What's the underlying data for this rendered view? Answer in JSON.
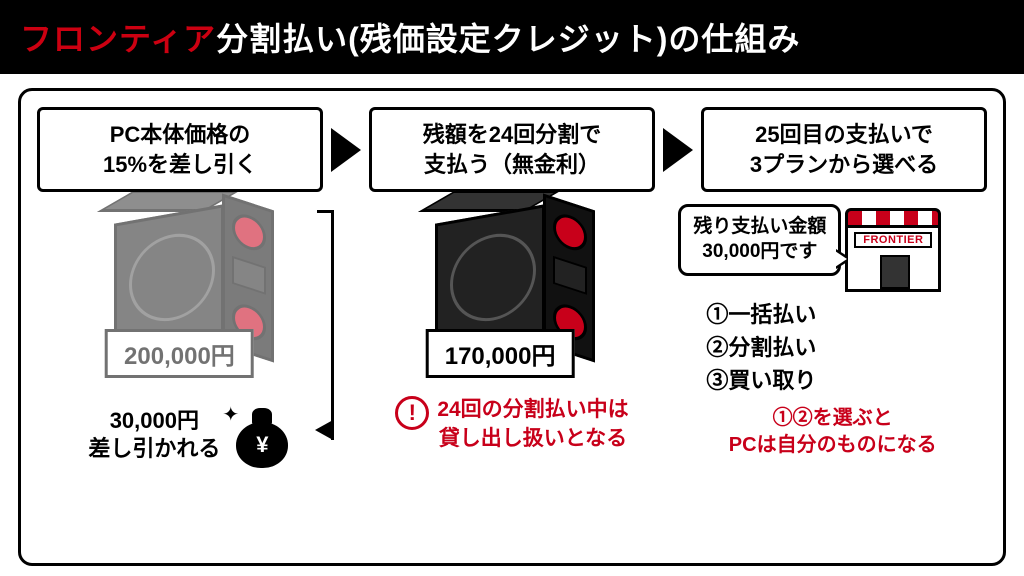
{
  "colors": {
    "accent": "#cc0011",
    "header_bg": "#000000",
    "text": "#000000",
    "warn": "#c8001a",
    "bg": "#ffffff"
  },
  "header": {
    "accent": "フロンティア",
    "rest": "分割払い(残価設定クレジット)の仕組み"
  },
  "steps": {
    "s1_l1": "PC本体価格の",
    "s1_l2": "15%を差し引く",
    "s2_l1": "残額を24回分割で",
    "s2_l2": "支払う（無金利）",
    "s3_l1": "25回目の支払いで",
    "s3_l2": "3プランから選べる"
  },
  "col1": {
    "price": "200,000円",
    "deduct_l1": "30,000円",
    "deduct_l2": "差し引かれる",
    "yen": "¥"
  },
  "col2": {
    "price": "170,000円",
    "warn_symbol": "!",
    "warn_l1": "24回の分割払い中は",
    "warn_l2": "貸し出し扱いとなる"
  },
  "col3": {
    "bubble_l1": "残り支払い金額",
    "bubble_l2": "30,000円です",
    "store_sign": "FRONTIER",
    "opt1": "①一括払い",
    "opt2": "②分割払い",
    "opt3": "③買い取り",
    "note_l1": "①②を選ぶと",
    "note_l2": "PCは自分のものになる"
  }
}
